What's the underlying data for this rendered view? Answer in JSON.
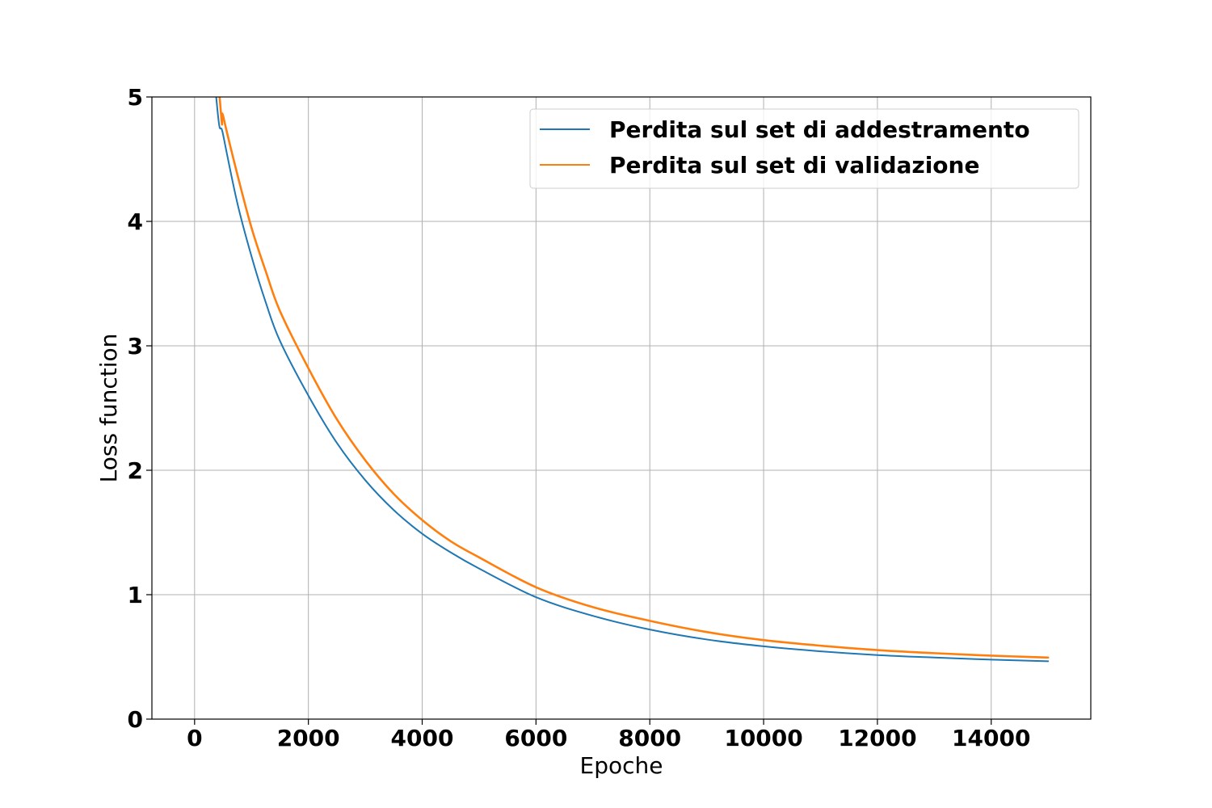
{
  "chart_data": {
    "type": "line",
    "title": "",
    "xlabel": "Epoche",
    "ylabel": "Loss function",
    "xlim": [
      -750,
      15750
    ],
    "ylim": [
      0,
      5
    ],
    "x_ticks": [
      0,
      2000,
      4000,
      6000,
      8000,
      10000,
      12000,
      14000
    ],
    "x_tick_labels": [
      "0",
      "2000",
      "4000",
      "6000",
      "8000",
      "10000",
      "12000",
      "14000"
    ],
    "y_ticks": [
      0,
      1,
      2,
      3,
      4,
      5
    ],
    "y_tick_labels": [
      "0",
      "1",
      "2",
      "3",
      "4",
      "5"
    ],
    "grid": true,
    "legend_position": "top-right",
    "series": [
      {
        "name": "Perdita sul set di addestramento",
        "color": "#1f77b4",
        "x": [
          0,
          380,
          500,
          750,
          1000,
          1250,
          1500,
          2000,
          2500,
          3000,
          3500,
          4000,
          4500,
          5000,
          6000,
          7000,
          8000,
          9000,
          10000,
          11000,
          12000,
          13000,
          14000,
          15000
        ],
        "y": [
          7.2,
          5.0,
          4.7,
          4.15,
          3.72,
          3.35,
          3.04,
          2.6,
          2.22,
          1.92,
          1.68,
          1.49,
          1.34,
          1.21,
          0.98,
          0.83,
          0.72,
          0.64,
          0.585,
          0.545,
          0.515,
          0.495,
          0.478,
          0.465
        ]
      },
      {
        "name": "Perdita sul set di validazione",
        "color": "#ff7f0e",
        "x": [
          0,
          440,
          500,
          750,
          1000,
          1250,
          1500,
          2000,
          2500,
          3000,
          3500,
          4000,
          4500,
          5000,
          6000,
          7000,
          8000,
          9000,
          10000,
          11000,
          12000,
          13000,
          14000,
          15000
        ],
        "y": [
          7.6,
          5.0,
          4.85,
          4.38,
          3.95,
          3.6,
          3.28,
          2.82,
          2.41,
          2.08,
          1.81,
          1.6,
          1.43,
          1.3,
          1.06,
          0.9,
          0.79,
          0.7,
          0.635,
          0.59,
          0.555,
          0.53,
          0.51,
          0.495
        ]
      }
    ]
  }
}
